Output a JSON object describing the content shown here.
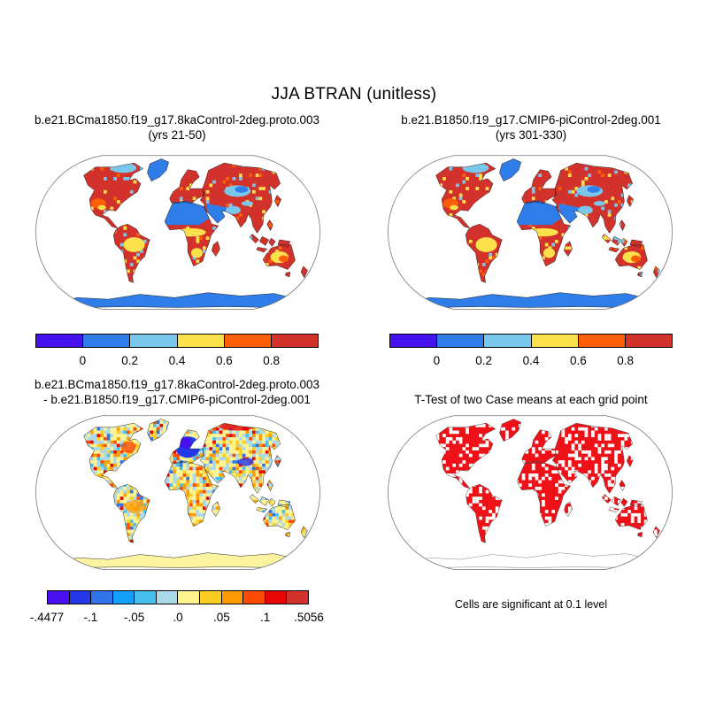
{
  "figure": {
    "title": "JJA BTRAN (unitless)",
    "background": "#ffffff"
  },
  "panels": [
    {
      "id": "case1",
      "style": "mean",
      "title_lines": [
        "b.e21.BCma1850.f19_g17.8kaControl-2deg.proto.003",
        "(yrs 21-50)"
      ]
    },
    {
      "id": "case2",
      "style": "mean",
      "title_lines": [
        "b.e21.B1850.f19_g17.CMIP6-piControl-2deg.001",
        "(yrs 301-330)"
      ]
    },
    {
      "id": "difference",
      "style": "diff",
      "title_lines": [
        "b.e21.BCma1850.f19_g17.8kaControl-2deg.proto.003",
        "- b.e21.B1850.f19_g17.CMIP6-piControl-2deg.001"
      ]
    },
    {
      "id": "ttest",
      "style": "ttest",
      "title_lines": [
        "T-Test of two Case means at each grid point"
      ],
      "caption": "Cells are significant at 0.1 level"
    }
  ],
  "colorbars": {
    "mean": {
      "segments": [
        "#4512EE",
        "#2E7DE9",
        "#79C8EC",
        "#FBE14B",
        "#FC5F08",
        "#D3312B"
      ],
      "ticks": [
        {
          "label": "0",
          "boundary": 1
        },
        {
          "label": "0.2",
          "boundary": 2
        },
        {
          "label": "0.4",
          "boundary": 3
        },
        {
          "label": "0.6",
          "boundary": 4
        },
        {
          "label": "0.8",
          "boundary": 5
        }
      ]
    },
    "diff": {
      "segments": [
        "#4A0FF0",
        "#2438E8",
        "#3173E8",
        "#14A0F8",
        "#46BFED",
        "#ABD8EA",
        "#FDF48F",
        "#FDCE22",
        "#FD9B07",
        "#FD4A02",
        "#E80505",
        "#D3312B"
      ],
      "ticks": [
        {
          "label": "-.4477",
          "boundary": 0
        },
        {
          "label": "-.1",
          "boundary": 2
        },
        {
          "label": "-.05",
          "boundary": 4
        },
        {
          "label": ".0",
          "boundary": 6
        },
        {
          "label": ".05",
          "boundary": 8
        },
        {
          "label": ".1",
          "boundary": 10
        },
        {
          "label": ".5056",
          "boundary": 12
        }
      ]
    }
  },
  "map_palettes": {
    "mean": {
      "base": "#D3312B",
      "blue": "#2E7DE9",
      "lightblue": "#79C8EC",
      "yellow": "#FBE14B",
      "orange": "#FC5F08",
      "antarctica": "#2E7DE9",
      "cells": [
        "#FBE14B",
        "#FC5F08",
        "#79C8EC"
      ],
      "weights": [
        0.4,
        0.3,
        0.3
      ]
    },
    "diff": {
      "base": "#FCF3A0",
      "blue2": "#2438E8",
      "violet": "#4A0FF0",
      "red": "#E80505",
      "redorange": "#FD4A02",
      "orange": "#FD9B07",
      "antarctica": "#FCF3A0",
      "cells": [
        "#FDF48F",
        "#ABD8EA",
        "#FDCE22",
        "#FD9B07",
        "#FD4A02",
        "#E80505",
        "#46BFED",
        "#3173E8"
      ],
      "weights": [
        0.3,
        0.27,
        0.12,
        0.1,
        0.06,
        0.05,
        0.06,
        0.04
      ]
    },
    "ttest": {
      "base": "#EF1118",
      "speckle": "#FFFFFF",
      "antarctica": "none"
    }
  },
  "chart_data": {
    "type": "heatmap",
    "title": "JJA BTRAN (unitless)",
    "variable": "BTRAN",
    "season": "JJA",
    "units": "unitless",
    "projection": "robinson-world-maps",
    "layout": "2x2 panel comparison figure, white ocean, colored land cells",
    "panels": [
      {
        "position": "top-left",
        "kind": "case-mean",
        "title": "b.e21.BCma1850.f19_g17.8kaControl-2deg.proto.003",
        "subtitle": "(yrs 21-50)",
        "colorbar": "mean",
        "description": "Land mostly high BTRAN (red >0.8); Sahara, Arabia, Greenland and Antarctica low (blue ~0-0.2); yellow 0.4-0.6 patches over Amazon, Sahel, southern Africa, interior Australia, SW United States; light blue patches over central Asia and Arctic Canada"
      },
      {
        "position": "top-right",
        "kind": "case-mean",
        "title": "b.e21.B1850.f19_g17.CMIP6-piControl-2deg.001",
        "subtitle": "(yrs 301-330)",
        "colorbar": "mean",
        "description": "Nearly identical spatial pattern to top-left panel"
      },
      {
        "position": "bottom-left",
        "kind": "difference",
        "title": "b.e21.BCma1850.f19_g17.8kaControl-2deg.proto.003 - b.e21.B1850.f19_g17.CMIP6-piControl-2deg.001",
        "colorbar": "diff",
        "description": "Mottled small differences (pale yellow/light blue ~0); strong negative (dark blue) over Europe and Tibet; positive (orange/red) over northern Russia, eastern Canada, Amazon, Sahel; Antarctica uniform pale yellow"
      },
      {
        "position": "bottom-right",
        "kind": "significance",
        "title": "T-Test of two Case means at each grid point",
        "note": "Cells are significant at 0.1 level",
        "description": "Red speckled cells covering most land areas mark significant grid points; ocean and Antarctica unshaded (outline only)"
      }
    ],
    "colorbars": {
      "mean": {
        "n_segments": 6,
        "tick_labels": [
          "0",
          "0.2",
          "0.4",
          "0.6",
          "0.8"
        ],
        "tick_values": [
          0,
          0.2,
          0.4,
          0.6,
          0.8
        ],
        "colors": [
          "#4512EE",
          "#2E7DE9",
          "#79C8EC",
          "#FBE14B",
          "#FC5F08",
          "#D3312B"
        ]
      },
      "diff": {
        "n_segments": 12,
        "tick_labels": [
          "-.4477",
          "-.1",
          "-.05",
          ".0",
          ".05",
          ".1",
          ".5056"
        ],
        "data_min": -0.4477,
        "data_max": 0.5056,
        "colors": [
          "#4A0FF0",
          "#2438E8",
          "#3173E8",
          "#14A0F8",
          "#46BFED",
          "#ABD8EA",
          "#FDF48F",
          "#FDCE22",
          "#FD9B07",
          "#FD4A02",
          "#E80505",
          "#D3312B"
        ]
      }
    }
  }
}
